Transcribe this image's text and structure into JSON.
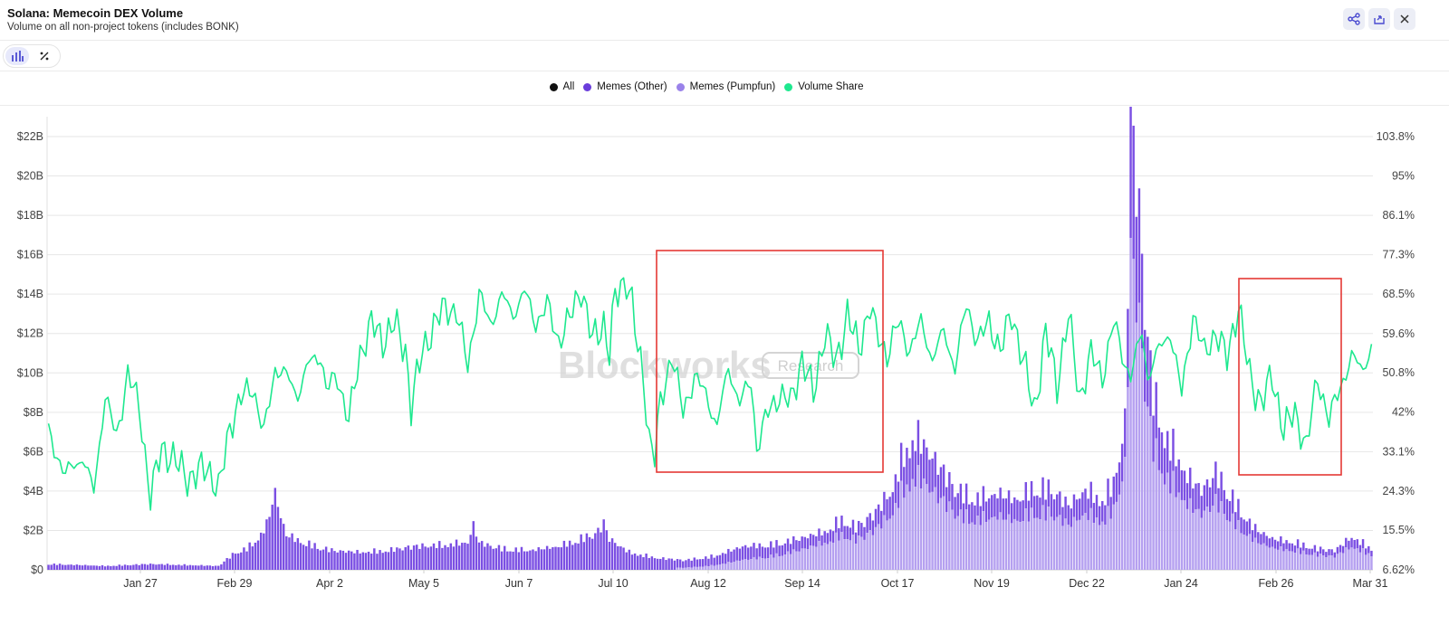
{
  "header": {
    "title": "Solana: Memecoin DEX Volume",
    "subtitle": "Volume on all non-project tokens (includes BONK)"
  },
  "colors": {
    "all": "#111111",
    "memes_other": "#7b4fe3",
    "memes_pumpfun": "#b5a0f0",
    "volume_share": "#1ee88f",
    "highlight_box": "#e53935"
  },
  "icons": {
    "share": "share-icon",
    "export": "export-icon",
    "close": "close-icon",
    "bar_chart": "bar-chart-icon",
    "percent": "percent-icon"
  },
  "watermark": {
    "brand": "Blockworks",
    "tag": "Research"
  },
  "chart_data": {
    "type": "bar",
    "stacked": true,
    "legend": [
      "All",
      "Memes (Other)",
      "Memes (Pumpfun)",
      "Volume Share"
    ],
    "legend_position": "top-center",
    "grid": true,
    "x_ticks": [
      "Jan 27",
      "Feb 29",
      "Apr 2",
      "May 5",
      "Jun 7",
      "Jul 10",
      "Aug 12",
      "Sep 14",
      "Oct 17",
      "Nov 19",
      "Dec 22",
      "Jan 24",
      "Feb 26",
      "Mar 31"
    ],
    "y_left": {
      "ticks": [
        "$0",
        "$2B",
        "$4B",
        "$6B",
        "$8B",
        "$10B",
        "$12B",
        "$14B",
        "$16B",
        "$18B",
        "$20B",
        "$22B"
      ],
      "range": [
        0,
        23
      ]
    },
    "y_right": {
      "ticks": [
        "6.62%",
        "15.5%",
        "24.3%",
        "33.1%",
        "42%",
        "50.8%",
        "59.6%",
        "68.5%",
        "77.3%",
        "86.1%",
        "95%",
        "103.8%"
      ],
      "range": [
        6.62,
        108.2
      ]
    },
    "volume_anchors_billion": [
      [
        0,
        0.3
      ],
      [
        20,
        0.2
      ],
      [
        36,
        0.3
      ],
      [
        60,
        0.2
      ],
      [
        66,
        0.9
      ],
      [
        70,
        1.1
      ],
      [
        74,
        1.6
      ],
      [
        77,
        2.3
      ],
      [
        80,
        4.0
      ],
      [
        82,
        2.7
      ],
      [
        84,
        1.8
      ],
      [
        90,
        1.4
      ],
      [
        100,
        1.0
      ],
      [
        110,
        0.9
      ],
      [
        120,
        1.0
      ],
      [
        128,
        1.2
      ],
      [
        140,
        1.3
      ],
      [
        148,
        1.4
      ],
      [
        150,
        2.3
      ],
      [
        152,
        1.4
      ],
      [
        160,
        1.1
      ],
      [
        170,
        1.0
      ],
      [
        180,
        1.2
      ],
      [
        190,
        1.7
      ],
      [
        194,
        2.0
      ],
      [
        196,
        2.4
      ],
      [
        198,
        1.6
      ],
      [
        205,
        0.9
      ],
      [
        215,
        0.6
      ],
      [
        225,
        0.5
      ],
      [
        235,
        0.7
      ],
      [
        245,
        1.2
      ],
      [
        255,
        1.3
      ],
      [
        265,
        1.6
      ],
      [
        275,
        2.0
      ],
      [
        280,
        2.6
      ],
      [
        285,
        2.2
      ],
      [
        292,
        3.0
      ],
      [
        298,
        4.2
      ],
      [
        302,
        6.1
      ],
      [
        306,
        6.8
      ],
      [
        309,
        6.5
      ],
      [
        312,
        5.8
      ],
      [
        316,
        5.0
      ],
      [
        322,
        4.0
      ],
      [
        328,
        3.7
      ],
      [
        335,
        3.9
      ],
      [
        342,
        3.6
      ],
      [
        348,
        4.3
      ],
      [
        355,
        4.1
      ],
      [
        360,
        3.3
      ],
      [
        366,
        4.1
      ],
      [
        372,
        3.6
      ],
      [
        376,
        4.5
      ],
      [
        380,
        7.5
      ],
      [
        382,
        23.0
      ],
      [
        384,
        21.0
      ],
      [
        386,
        16.0
      ],
      [
        388,
        12.0
      ],
      [
        390,
        9.0
      ],
      [
        394,
        7.0
      ],
      [
        398,
        6.0
      ],
      [
        402,
        4.8
      ],
      [
        407,
        4.1
      ],
      [
        412,
        5.0
      ],
      [
        416,
        4.2
      ],
      [
        420,
        3.2
      ],
      [
        426,
        2.1
      ],
      [
        432,
        1.6
      ],
      [
        440,
        1.4
      ],
      [
        448,
        1.1
      ],
      [
        454,
        1.0
      ],
      [
        460,
        1.7
      ],
      [
        467,
        1.1
      ]
    ],
    "volume_share_anchors_percent": [
      [
        0,
        37
      ],
      [
        6,
        28
      ],
      [
        12,
        32
      ],
      [
        16,
        24
      ],
      [
        20,
        46
      ],
      [
        24,
        36
      ],
      [
        28,
        51
      ],
      [
        32,
        43
      ],
      [
        36,
        23
      ],
      [
        40,
        34
      ],
      [
        46,
        30
      ],
      [
        50,
        27
      ],
      [
        56,
        30
      ],
      [
        60,
        24
      ],
      [
        64,
        39
      ],
      [
        68,
        45
      ],
      [
        72,
        48
      ],
      [
        76,
        37
      ],
      [
        80,
        52
      ],
      [
        84,
        50
      ],
      [
        88,
        46
      ],
      [
        92,
        53
      ],
      [
        96,
        55
      ],
      [
        98,
        47
      ],
      [
        102,
        50
      ],
      [
        106,
        40
      ],
      [
        110,
        55
      ],
      [
        114,
        62
      ],
      [
        118,
        58
      ],
      [
        122,
        62
      ],
      [
        126,
        56
      ],
      [
        128,
        43
      ],
      [
        132,
        56
      ],
      [
        136,
        61
      ],
      [
        140,
        66
      ],
      [
        144,
        64
      ],
      [
        148,
        53
      ],
      [
        152,
        68
      ],
      [
        156,
        62
      ],
      [
        160,
        68
      ],
      [
        164,
        64
      ],
      [
        168,
        69
      ],
      [
        172,
        62
      ],
      [
        176,
        66
      ],
      [
        180,
        58
      ],
      [
        184,
        63
      ],
      [
        188,
        70
      ],
      [
        192,
        58
      ],
      [
        196,
        62
      ],
      [
        198,
        55
      ],
      [
        200,
        68
      ],
      [
        204,
        72
      ],
      [
        206,
        66
      ],
      [
        208,
        56
      ],
      [
        210,
        50
      ],
      [
        212,
        36
      ],
      [
        214,
        32
      ],
      [
        216,
        44
      ],
      [
        220,
        55
      ],
      [
        224,
        42
      ],
      [
        228,
        50
      ],
      [
        232,
        46
      ],
      [
        236,
        39
      ],
      [
        240,
        52
      ],
      [
        244,
        44
      ],
      [
        248,
        49
      ],
      [
        250,
        34
      ],
      [
        254,
        42
      ],
      [
        258,
        46
      ],
      [
        262,
        44
      ],
      [
        266,
        54
      ],
      [
        270,
        46
      ],
      [
        274,
        60
      ],
      [
        278,
        53
      ],
      [
        282,
        64
      ],
      [
        286,
        56
      ],
      [
        290,
        66
      ],
      [
        292,
        60
      ],
      [
        296,
        55
      ],
      [
        300,
        62
      ],
      [
        304,
        56
      ],
      [
        308,
        62
      ],
      [
        312,
        54
      ],
      [
        316,
        60
      ],
      [
        320,
        52
      ],
      [
        324,
        66
      ],
      [
        328,
        58
      ],
      [
        332,
        62
      ],
      [
        336,
        56
      ],
      [
        340,
        64
      ],
      [
        344,
        54
      ],
      [
        348,
        42
      ],
      [
        352,
        60
      ],
      [
        356,
        48
      ],
      [
        360,
        64
      ],
      [
        364,
        45
      ],
      [
        368,
        55
      ],
      [
        372,
        50
      ],
      [
        376,
        62
      ],
      [
        380,
        53
      ],
      [
        382,
        50
      ],
      [
        384,
        55
      ],
      [
        386,
        60
      ],
      [
        388,
        50
      ],
      [
        392,
        56
      ],
      [
        396,
        60
      ],
      [
        400,
        46
      ],
      [
        404,
        64
      ],
      [
        408,
        55
      ],
      [
        412,
        60
      ],
      [
        416,
        54
      ],
      [
        420,
        66
      ],
      [
        424,
        50
      ],
      [
        428,
        44
      ],
      [
        432,
        50
      ],
      [
        436,
        38
      ],
      [
        440,
        42
      ],
      [
        444,
        34
      ],
      [
        448,
        50
      ],
      [
        452,
        40
      ],
      [
        456,
        48
      ],
      [
        460,
        54
      ],
      [
        464,
        52
      ],
      [
        468,
        58
      ],
      [
        472,
        50
      ]
    ]
  }
}
